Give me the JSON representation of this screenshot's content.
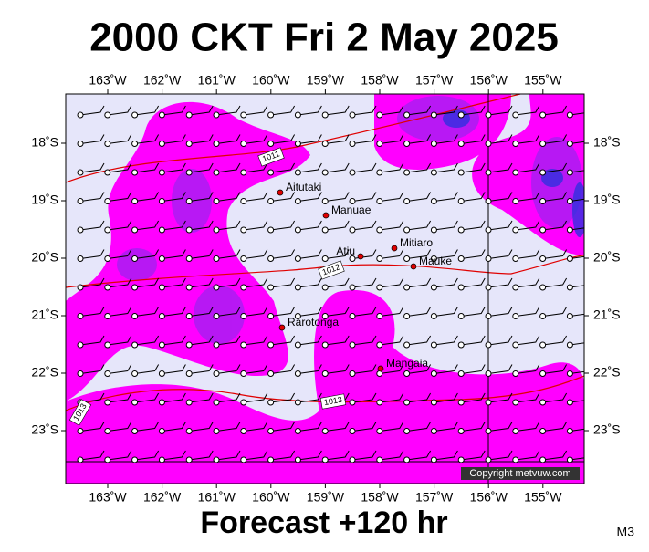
{
  "header": {
    "title": "2000 CKT Fri 2 May 2025"
  },
  "map": {
    "longitude_labels": [
      "163˚W",
      "162˚W",
      "161˚W",
      "160˚W",
      "159˚W",
      "158˚W",
      "157˚W",
      "156˚W",
      "155˚W"
    ],
    "latitude_labels": [
      "18˚S",
      "19˚S",
      "20˚S",
      "21˚S",
      "22˚S",
      "23˚S"
    ],
    "places": [
      {
        "label": "Aitutaki"
      },
      {
        "label": "Manuae"
      },
      {
        "label": "Mitiaro"
      },
      {
        "label": "Atiu"
      },
      {
        "label": "Mauke"
      },
      {
        "label": "Rarotonga"
      },
      {
        "label": "Mangaia"
      }
    ],
    "isobar_labels": [
      "1011",
      "1012",
      "1013",
      "1013"
    ],
    "copyright": "Copyright metvuw.com"
  },
  "footer": {
    "forecast": "Forecast +120 hr",
    "code": "M3"
  }
}
